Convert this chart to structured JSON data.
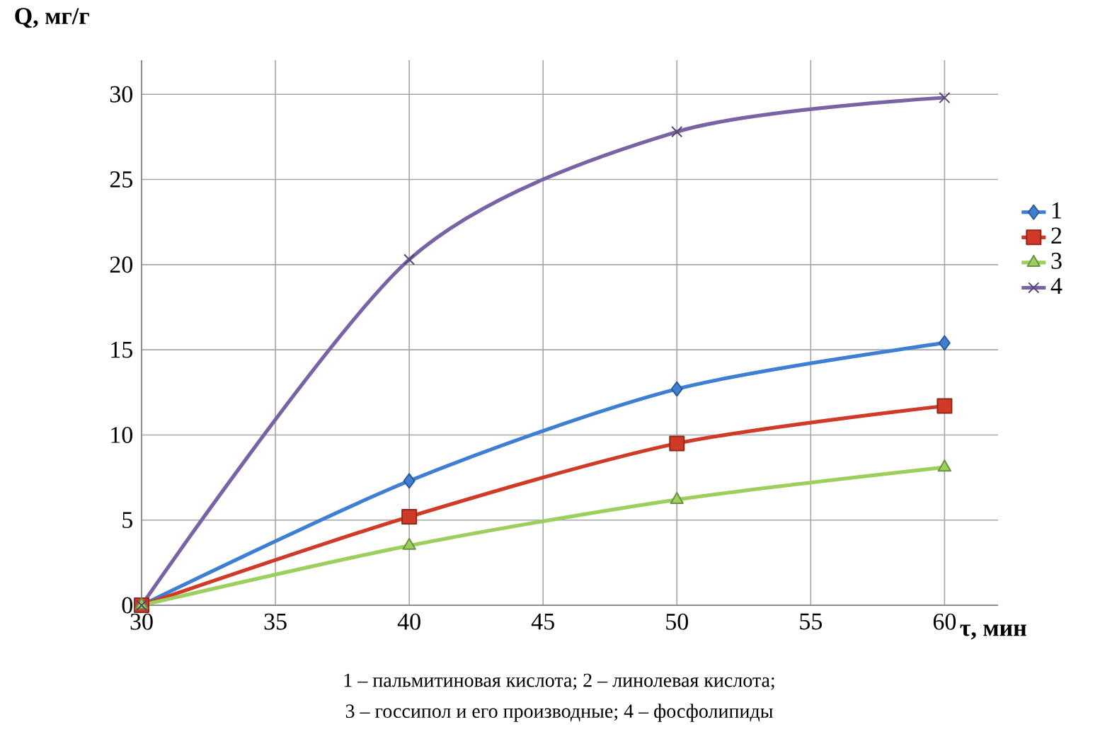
{
  "chart_data": {
    "type": "line",
    "xlabel": "τ, мин",
    "ylabel": "Q, мг/г",
    "x": [
      30,
      40,
      50,
      60
    ],
    "series": [
      {
        "name": "1",
        "color": "#3f7fd3",
        "marker": "diamond",
        "values": [
          0,
          7.3,
          12.7,
          15.4
        ]
      },
      {
        "name": "2",
        "color": "#cf3b26",
        "marker": "square",
        "values": [
          0,
          5.2,
          9.5,
          11.7
        ]
      },
      {
        "name": "3",
        "color": "#9ccf5e",
        "marker": "triangle",
        "values": [
          0,
          3.5,
          6.2,
          8.1
        ]
      },
      {
        "name": "4",
        "color": "#7864a4",
        "marker": "cross",
        "values": [
          0,
          20.3,
          27.8,
          29.8
        ]
      }
    ],
    "xlim": [
      30,
      62
    ],
    "ylim": [
      0,
      32
    ],
    "xticks": [
      30,
      35,
      40,
      45,
      50,
      55,
      60
    ],
    "yticks": [
      0,
      5,
      10,
      15,
      20,
      25,
      30
    ],
    "grid": true,
    "legend": "right",
    "annotations": [
      "1 – пальмитиновая кислота; 2 – линолевая кислота;",
      "3 – госсипол и его производные; 4 – фосфолипиды"
    ]
  }
}
